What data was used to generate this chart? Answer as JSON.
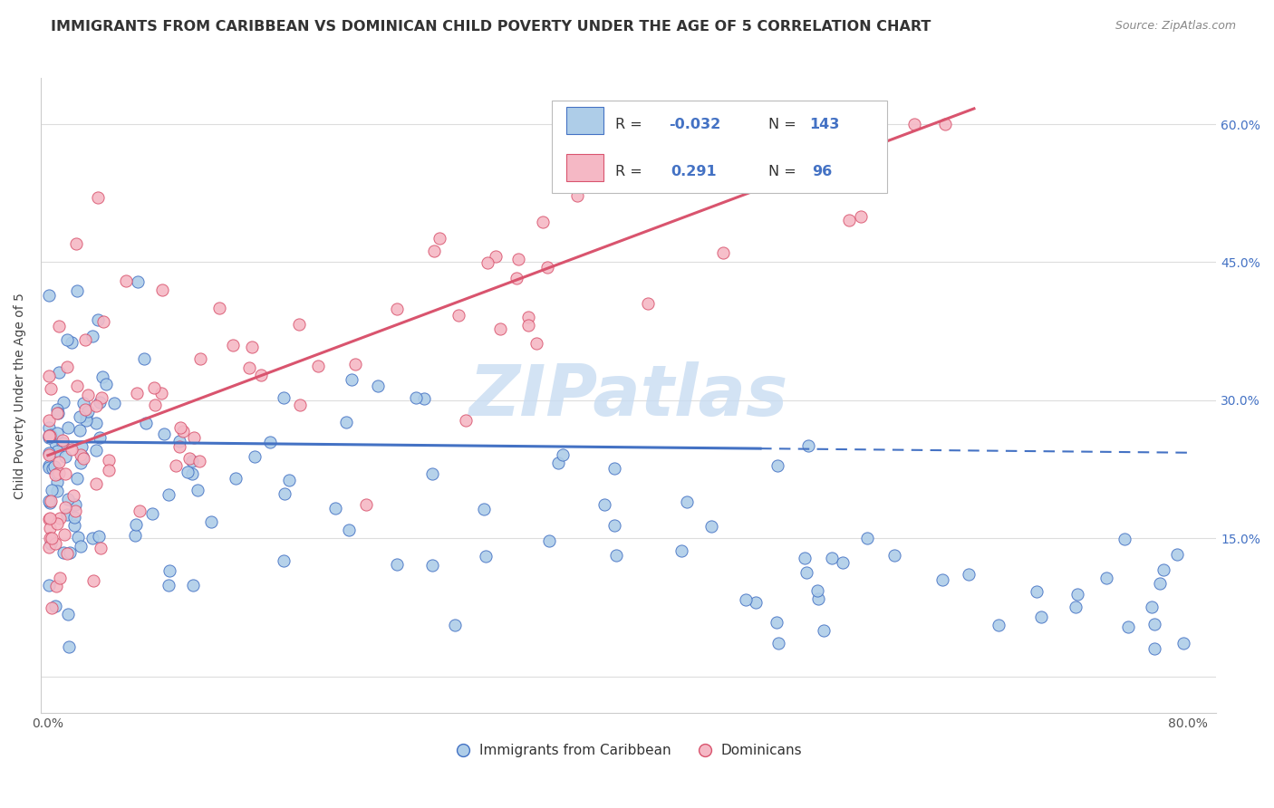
{
  "title": "IMMIGRANTS FROM CARIBBEAN VS DOMINICAN CHILD POVERTY UNDER THE AGE OF 5 CORRELATION CHART",
  "source": "Source: ZipAtlas.com",
  "ylabel": "Child Poverty Under the Age of 5",
  "legend_entries": [
    {
      "label": "Immigrants from Caribbean",
      "R": "-0.032",
      "N": "143",
      "color": "#aecde8",
      "edge_color": "#4472c4"
    },
    {
      "label": "Dominicans",
      "R": "0.291",
      "N": "96",
      "color": "#f5b8c5",
      "edge_color": "#d9546e"
    }
  ],
  "ytick_vals": [
    0.0,
    0.15,
    0.3,
    0.45,
    0.6
  ],
  "ytick_labels": [
    "",
    "15.0%",
    "30.0%",
    "45.0%",
    "60.0%"
  ],
  "xlim": [
    -0.005,
    0.82
  ],
  "ylim": [
    -0.04,
    0.65
  ],
  "background_color": "#ffffff",
  "grid_color": "#dddddd",
  "title_fontsize": 11.5,
  "source_fontsize": 9,
  "axis_label_fontsize": 10,
  "tick_fontsize": 10,
  "right_tick_color": "#4472c4",
  "watermark_text": "ZIPatlas",
  "watermark_color": "#c8dcf2",
  "carib_trend_solid_end": 0.5,
  "dom_trend_end": 0.65
}
